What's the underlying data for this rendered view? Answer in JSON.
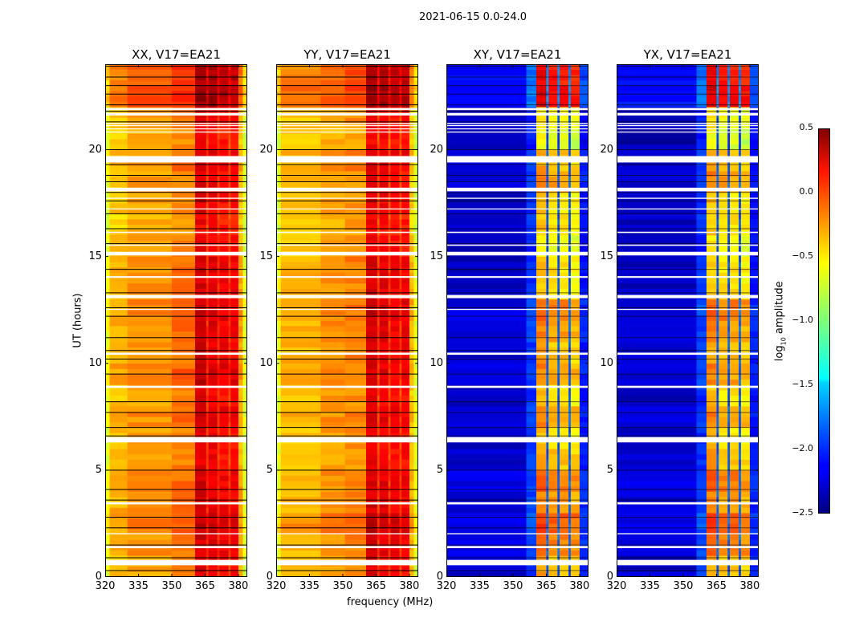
{
  "chart_data": {
    "type": "heatmap",
    "title": "2021-06-15 0.0-24.0",
    "xlabel": "frequency (MHz)",
    "ylabel": "UT (hours)",
    "xlim": [
      320,
      384
    ],
    "ylim": [
      0,
      24
    ],
    "xticks": [
      "320",
      "335",
      "350",
      "365",
      "380"
    ],
    "xtick_values": [
      320,
      335,
      350,
      365,
      380
    ],
    "yticks": [
      "0",
      "5",
      "10",
      "15",
      "20"
    ],
    "ytick_values": [
      0,
      5,
      10,
      15,
      20
    ],
    "colormap": "jet",
    "clim": [
      -2.5,
      0.5
    ],
    "colorbar": {
      "label_main": "log",
      "label_sub": "10",
      "label_rest": " amplitude",
      "ticks": [
        "0.5",
        "0.0",
        "−0.5",
        "−1.0",
        "−1.5",
        "−2.0",
        "−2.5"
      ],
      "tick_values": [
        0.5,
        0.0,
        -0.5,
        -1.0,
        -1.5,
        -2.0,
        -2.5
      ]
    },
    "flagged_hours": [
      [
        0.55,
        0.8
      ],
      [
        1.35,
        1.45
      ],
      [
        2.0,
        2.05
      ],
      [
        3.4,
        3.5
      ],
      [
        6.3,
        6.55
      ],
      [
        8.85,
        8.95
      ],
      [
        10.4,
        10.5
      ],
      [
        12.5,
        12.55
      ],
      [
        13.05,
        13.2
      ],
      [
        14.0,
        14.08
      ],
      [
        15.05,
        15.22
      ],
      [
        15.5,
        15.56
      ],
      [
        16.1,
        16.16
      ],
      [
        17.2,
        17.25
      ],
      [
        17.7,
        17.75
      ],
      [
        18.05,
        18.22
      ],
      [
        19.4,
        19.7
      ],
      [
        20.8,
        20.85
      ],
      [
        20.95,
        21.0
      ],
      [
        21.1,
        21.15
      ],
      [
        21.2,
        21.25
      ],
      [
        21.6,
        21.72
      ],
      [
        21.85,
        21.95
      ]
    ],
    "black_line_hours": [
      0.3,
      0.9,
      1.5,
      2.3,
      2.8,
      3.6,
      4.1,
      5.0,
      6.6,
      7.0,
      7.7,
      8.2,
      9.5,
      10.2,
      10.6,
      11.2,
      12.2,
      12.6,
      13.3,
      14.4,
      15.6,
      16.3,
      17.0,
      17.6,
      18.0,
      18.5,
      18.8,
      19.3,
      20.0,
      21.3,
      21.8,
      22.1,
      22.6,
      23.0,
      23.4,
      23.9
    ],
    "panels": [
      {
        "title": "XX, V17=EA21",
        "freq_profile": [
          [
            320,
            322,
            -0.7
          ],
          [
            322,
            330,
            -0.45
          ],
          [
            330,
            350,
            -0.35
          ],
          [
            350,
            360.5,
            -0.25
          ],
          [
            360.5,
            365.5,
            0.2
          ],
          [
            365.5,
            366.5,
            -0.05
          ],
          [
            366.5,
            370.5,
            0.15
          ],
          [
            370.5,
            371.5,
            -0.05
          ],
          [
            371.5,
            375.5,
            0.1
          ],
          [
            375.5,
            376.5,
            -0.1
          ],
          [
            376.5,
            380,
            0.1
          ],
          [
            380,
            382,
            -0.4
          ],
          [
            382,
            384,
            -0.75
          ]
        ],
        "hour_offsets": [
          0,
          0.05,
          0.1,
          0.05,
          0.05,
          0,
          0,
          0.05,
          0,
          0.1,
          0.05,
          0.05,
          0.1,
          0.05,
          0.05,
          0,
          -0.05,
          0,
          0,
          0.05,
          -0.05,
          0,
          0.25,
          0.2
        ]
      },
      {
        "title": "YY, V17=EA21",
        "freq_profile": [
          [
            320,
            322,
            -0.7
          ],
          [
            322,
            340,
            -0.45
          ],
          [
            340,
            351,
            -0.35
          ],
          [
            351,
            360.5,
            -0.3
          ],
          [
            360.5,
            365.5,
            0.2
          ],
          [
            365.5,
            366.5,
            -0.1
          ],
          [
            366.5,
            370.5,
            0.15
          ],
          [
            370.5,
            371.5,
            -0.1
          ],
          [
            371.5,
            375.5,
            0.1
          ],
          [
            375.5,
            376.5,
            -0.1
          ],
          [
            376.5,
            380,
            0.1
          ],
          [
            380,
            382,
            -0.45
          ],
          [
            382,
            384,
            -0.75
          ]
        ],
        "hour_offsets": [
          0,
          0.05,
          0.15,
          0.05,
          0.05,
          0,
          0,
          0.05,
          0,
          0.05,
          0.05,
          0.05,
          0.1,
          0.05,
          0.05,
          0,
          -0.05,
          0,
          0,
          0.05,
          -0.05,
          0,
          0.25,
          0.2
        ]
      },
      {
        "title": "XY, V17=EA21",
        "freq_profile": [
          [
            320,
            356,
            -2.3
          ],
          [
            356,
            360.5,
            -2.0
          ],
          [
            360.5,
            365,
            -0.45
          ],
          [
            365,
            366,
            -1.9
          ],
          [
            366,
            370,
            -0.55
          ],
          [
            370,
            371,
            -1.9
          ],
          [
            371,
            375,
            -0.55
          ],
          [
            375,
            376,
            -1.9
          ],
          [
            376,
            380,
            -0.6
          ],
          [
            380,
            384,
            -2.1
          ]
        ],
        "hour_offsets": [
          0.1,
          0.3,
          0.4,
          0.2,
          0.3,
          0.1,
          0,
          0.2,
          0,
          0.2,
          0.1,
          0.2,
          0.3,
          0,
          0,
          -0.1,
          0,
          0,
          0.2,
          0.1,
          -0.2,
          -0.1,
          0.7,
          0.6
        ]
      },
      {
        "title": "YX, V17=EA21",
        "freq_profile": [
          [
            320,
            356,
            -2.3
          ],
          [
            356,
            360.5,
            -2.0
          ],
          [
            360.5,
            365,
            -0.45
          ],
          [
            365,
            366,
            -1.9
          ],
          [
            366,
            370,
            -0.55
          ],
          [
            370,
            371,
            -1.9
          ],
          [
            371,
            375,
            -0.55
          ],
          [
            375,
            376,
            -1.9
          ],
          [
            376,
            380,
            -0.6
          ],
          [
            380,
            384,
            -2.1
          ]
        ],
        "hour_offsets": [
          0.1,
          0.3,
          0.4,
          0.2,
          0.3,
          0.1,
          0,
          0.2,
          0,
          0.2,
          0.1,
          0.2,
          0.3,
          0,
          0,
          -0.1,
          0,
          0,
          0.2,
          0.1,
          -0.2,
          -0.1,
          0.7,
          0.6
        ]
      }
    ]
  }
}
